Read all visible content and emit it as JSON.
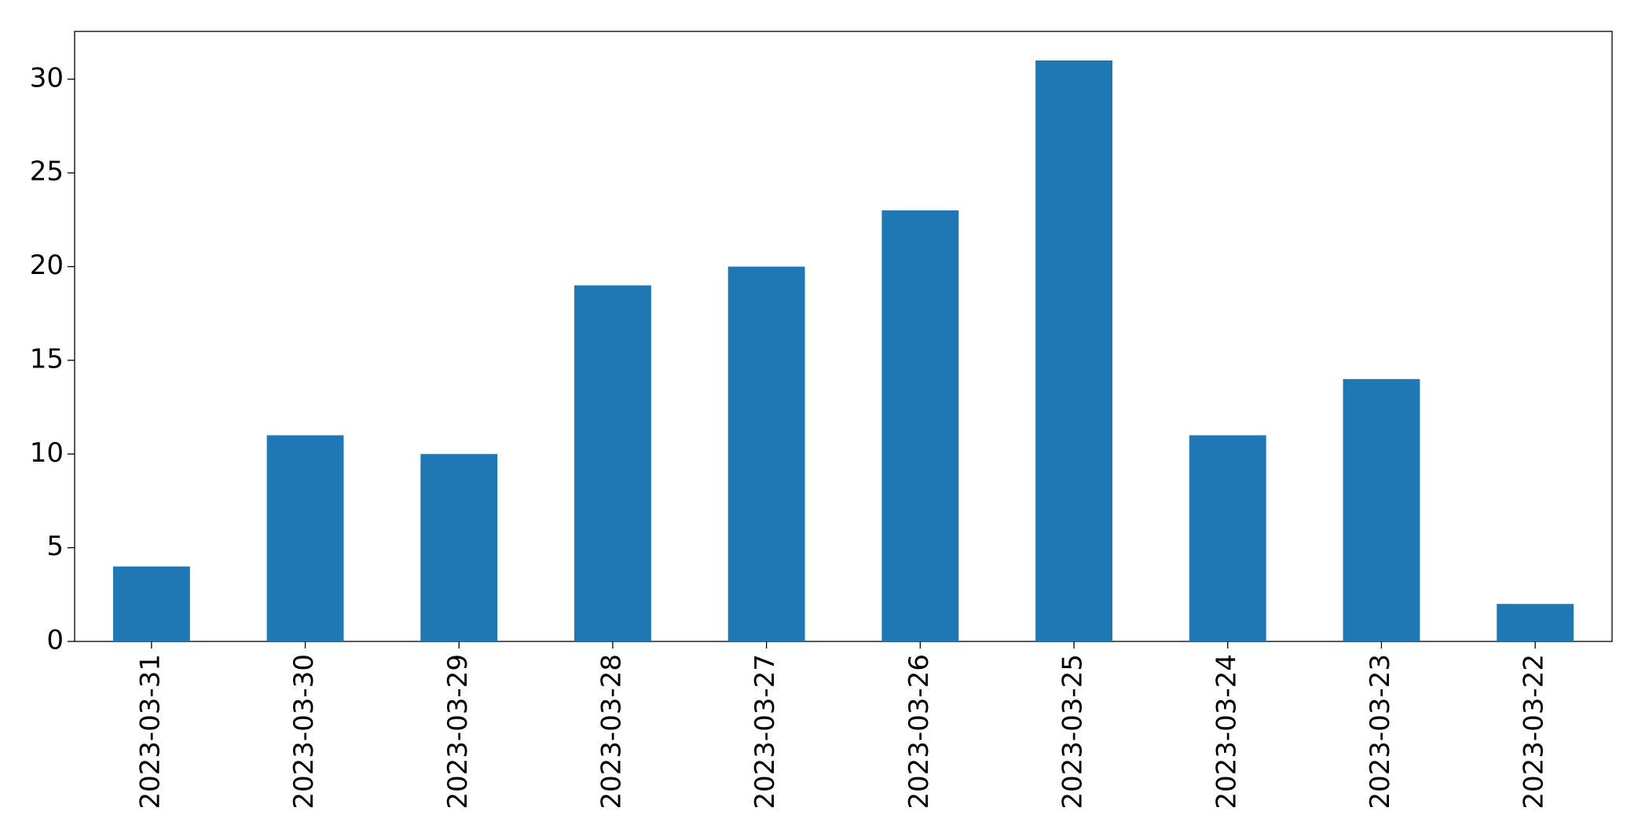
{
  "chart_data": {
    "type": "bar",
    "categories": [
      "2023-03-31",
      "2023-03-30",
      "2023-03-29",
      "2023-03-28",
      "2023-03-27",
      "2023-03-26",
      "2023-03-25",
      "2023-03-24",
      "2023-03-23",
      "2023-03-22"
    ],
    "values": [
      4,
      11,
      10,
      19,
      20,
      23,
      31,
      11,
      14,
      2
    ],
    "color": "#1f77b4",
    "ylim": [
      0,
      32.55
    ],
    "yticks": [
      0,
      5,
      10,
      15,
      20,
      25,
      30
    ],
    "grid": false
  }
}
